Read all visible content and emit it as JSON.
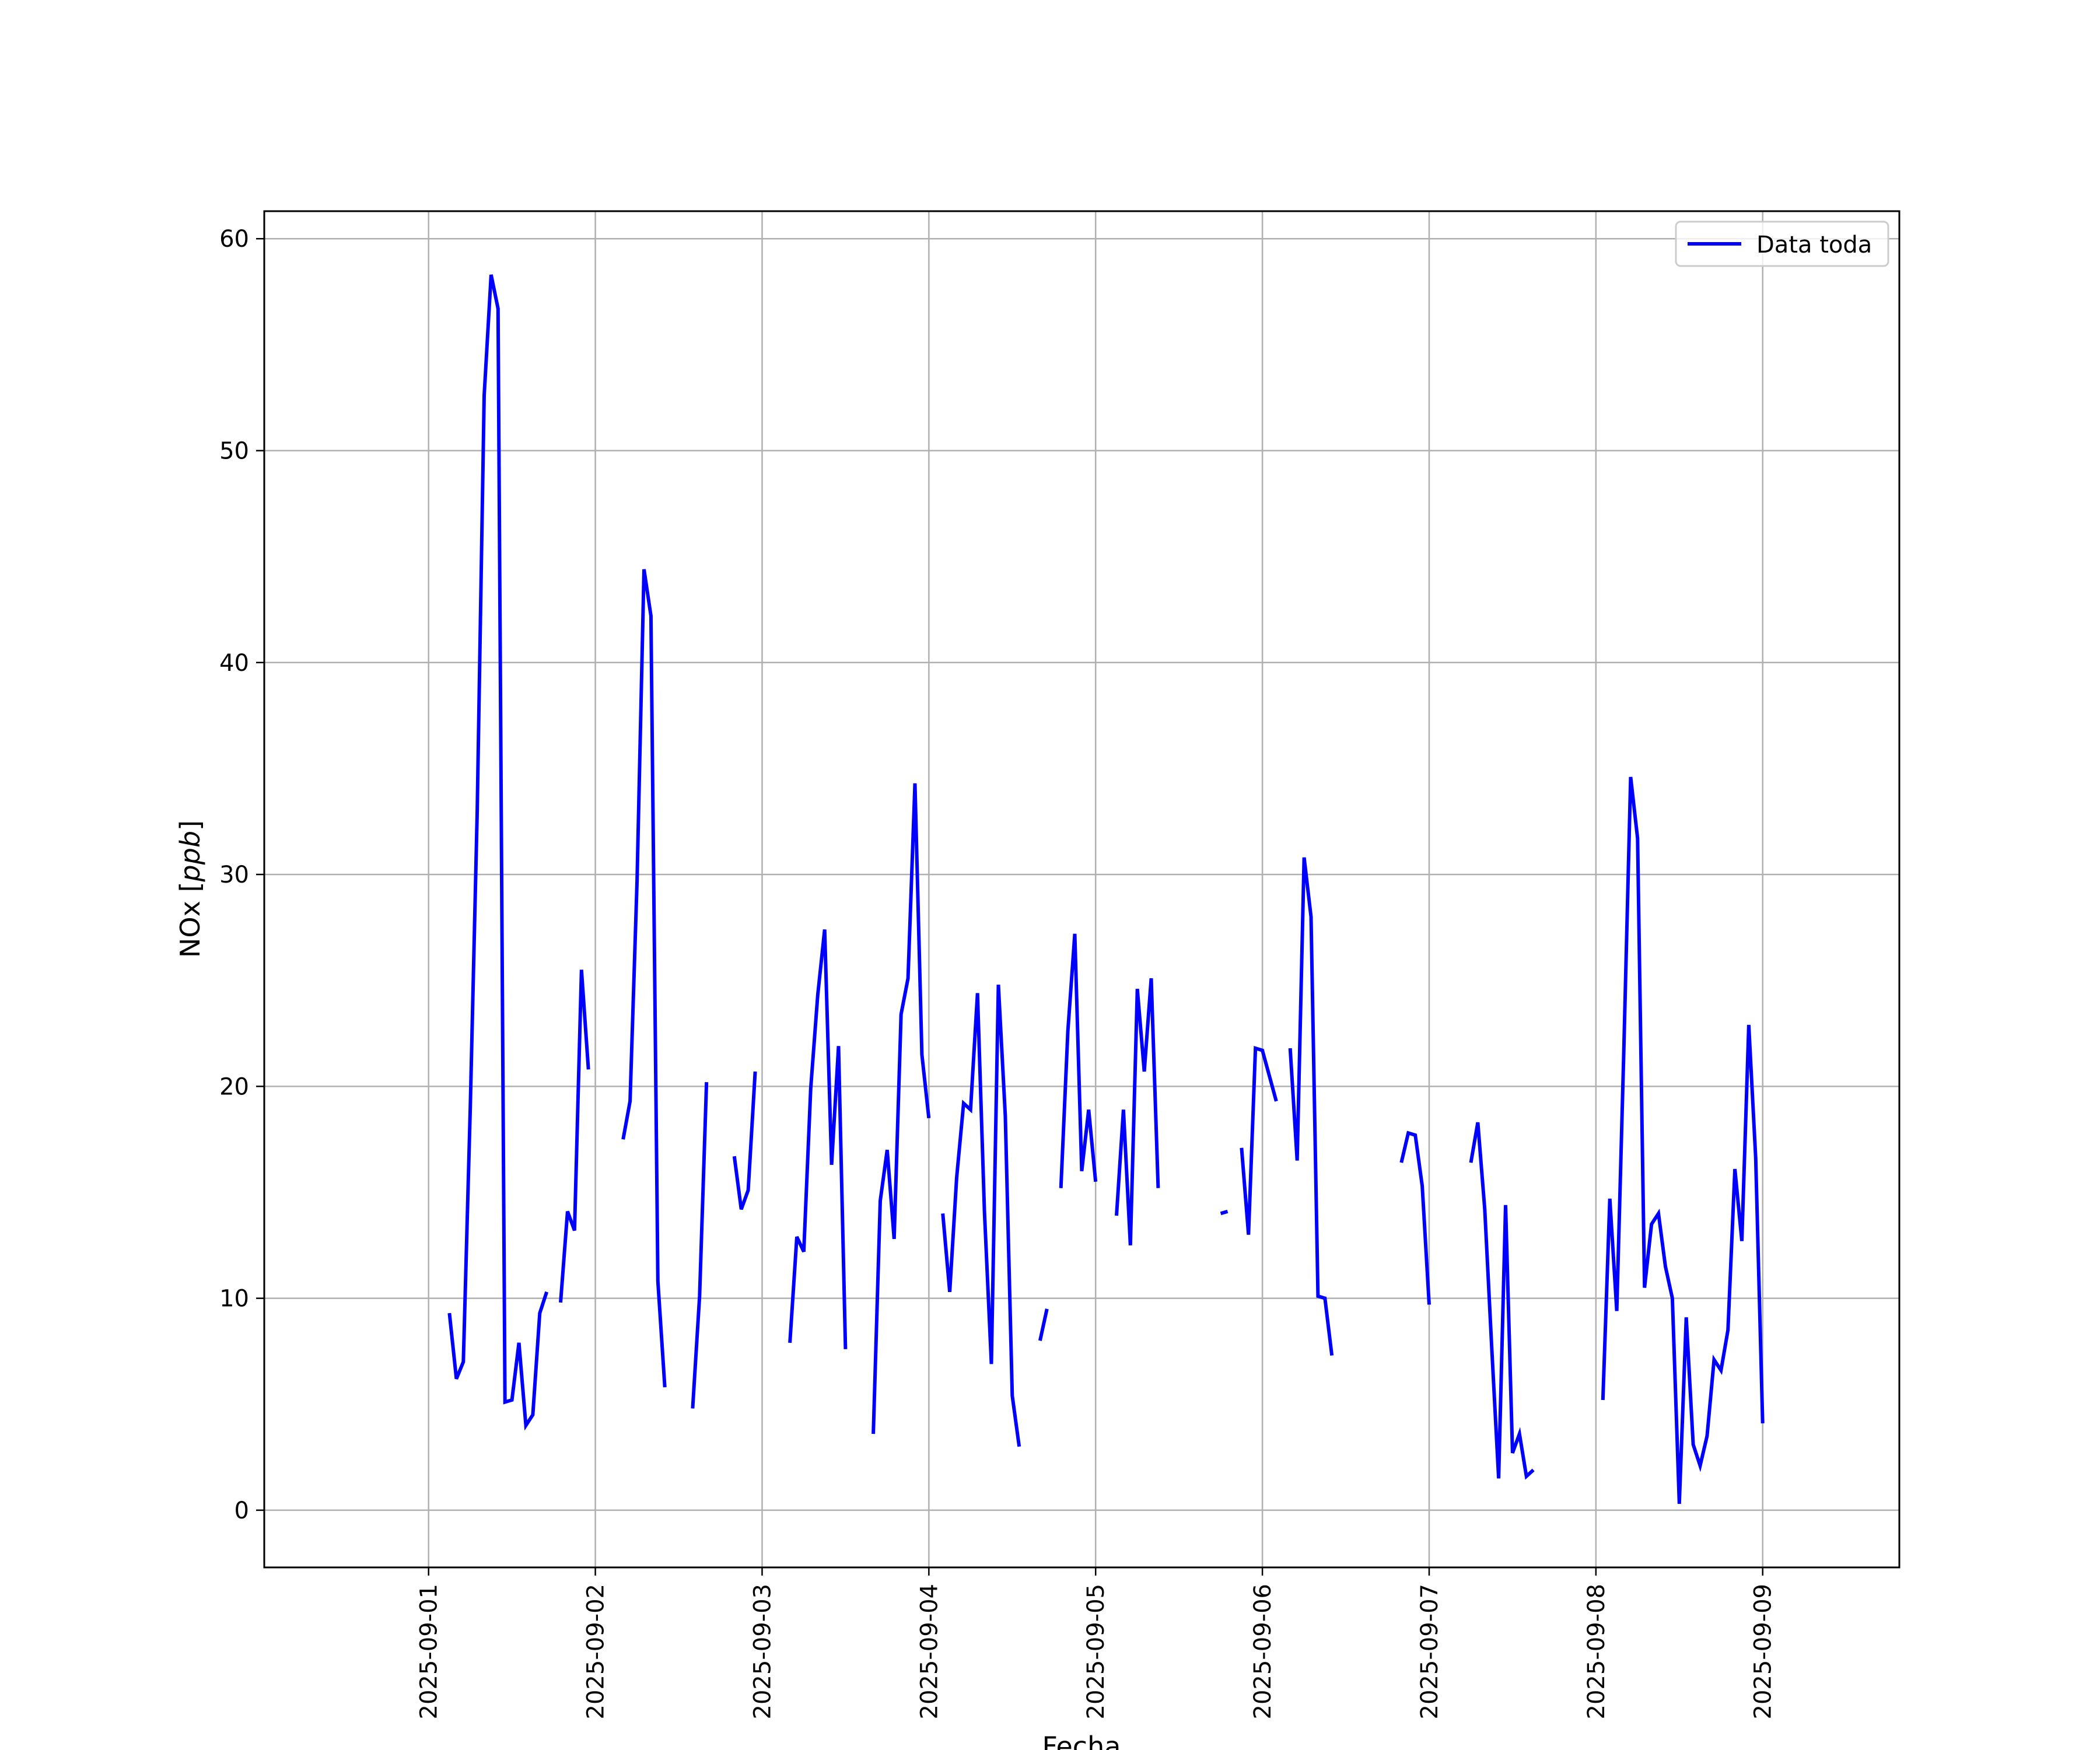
{
  "chart_data": {
    "type": "line",
    "title": "",
    "xlabel": "Fecha",
    "ylabel": "NOx [ppb]",
    "xlim": [
      "2025-08-31T00:21:00",
      "2025-09-09T19:40:00"
    ],
    "ylim": [
      -2.7,
      61.3
    ],
    "x_ticks": [
      "2025-09-01",
      "2025-09-02",
      "2025-09-03",
      "2025-09-04",
      "2025-09-05",
      "2025-09-06",
      "2025-09-07",
      "2025-09-08",
      "2025-09-09"
    ],
    "y_ticks": [
      0,
      10,
      20,
      30,
      40,
      50,
      60
    ],
    "grid": true,
    "legend": {
      "location": "upper right"
    },
    "colors": {
      "series": "#0000ff",
      "grid": "#b0b0b0",
      "axes": "#000000"
    },
    "series": [
      {
        "name": "Data toda",
        "segments": [
          [
            [
              "2025-09-01T03:00",
              9.3
            ],
            [
              "2025-09-01T04:00",
              6.2
            ],
            [
              "2025-09-01T05:00",
              7.0
            ],
            [
              "2025-09-01T06:00",
              19.0
            ],
            [
              "2025-09-01T07:00",
              33.0
            ],
            [
              "2025-09-01T08:00",
              52.6
            ],
            [
              "2025-09-01T09:00",
              58.3
            ],
            [
              "2025-09-01T10:00",
              56.7
            ],
            [
              "2025-09-01T11:00",
              5.1
            ],
            [
              "2025-09-01T12:00",
              5.2
            ],
            [
              "2025-09-01T13:00",
              7.9
            ],
            [
              "2025-09-01T14:00",
              4.0
            ],
            [
              "2025-09-01T15:00",
              4.5
            ],
            [
              "2025-09-01T16:00",
              9.3
            ],
            [
              "2025-09-01T17:00",
              10.3
            ]
          ],
          [
            [
              "2025-09-01T19:00",
              9.8
            ],
            [
              "2025-09-01T20:00",
              14.1
            ],
            [
              "2025-09-01T21:00",
              13.2
            ],
            [
              "2025-09-01T22:00",
              25.5
            ],
            [
              "2025-09-01T23:00",
              20.8
            ]
          ],
          [
            [
              "2025-09-02T04:00",
              17.5
            ],
            [
              "2025-09-02T05:00",
              19.3
            ],
            [
              "2025-09-02T06:00",
              29.7
            ],
            [
              "2025-09-02T07:00",
              44.4
            ],
            [
              "2025-09-02T08:00",
              42.2
            ],
            [
              "2025-09-02T09:00",
              10.8
            ],
            [
              "2025-09-02T10:00",
              5.8
            ]
          ],
          [
            [
              "2025-09-02T14:00",
              4.8
            ],
            [
              "2025-09-02T15:00",
              10.1
            ],
            [
              "2025-09-02T16:00",
              20.2
            ]
          ],
          [
            [
              "2025-09-02T20:00",
              16.7
            ],
            [
              "2025-09-02T21:00",
              14.2
            ],
            [
              "2025-09-02T22:00",
              15.1
            ],
            [
              "2025-09-02T23:00",
              20.7
            ]
          ],
          [
            [
              "2025-09-03T04:00",
              7.9
            ],
            [
              "2025-09-03T05:00",
              12.9
            ],
            [
              "2025-09-03T06:00",
              12.2
            ],
            [
              "2025-09-03T07:00",
              19.9
            ],
            [
              "2025-09-03T08:00",
              24.3
            ],
            [
              "2025-09-03T09:00",
              27.4
            ],
            [
              "2025-09-03T10:00",
              16.3
            ],
            [
              "2025-09-03T11:00",
              21.9
            ],
            [
              "2025-09-03T12:00",
              7.6
            ]
          ],
          [
            [
              "2025-09-03T16:00",
              3.6
            ],
            [
              "2025-09-03T17:00",
              14.6
            ],
            [
              "2025-09-03T18:00",
              17.0
            ],
            [
              "2025-09-03T19:00",
              12.8
            ],
            [
              "2025-09-03T20:00",
              23.4
            ],
            [
              "2025-09-03T21:00",
              25.1
            ],
            [
              "2025-09-03T22:00",
              34.3
            ],
            [
              "2025-09-03T23:00",
              21.5
            ],
            [
              "2025-09-04T00:00",
              18.5
            ]
          ],
          [
            [
              "2025-09-04T02:00",
              14.0
            ],
            [
              "2025-09-04T03:00",
              10.3
            ],
            [
              "2025-09-04T04:00",
              15.7
            ],
            [
              "2025-09-04T05:00",
              19.2
            ],
            [
              "2025-09-04T06:00",
              18.9
            ],
            [
              "2025-09-04T07:00",
              24.4
            ],
            [
              "2025-09-04T08:00",
              14.1
            ],
            [
              "2025-09-04T09:00",
              6.9
            ],
            [
              "2025-09-04T10:00",
              24.8
            ],
            [
              "2025-09-04T11:00",
              18.6
            ],
            [
              "2025-09-04T12:00",
              5.4
            ],
            [
              "2025-09-04T13:00",
              3.0
            ]
          ],
          [
            [
              "2025-09-04T16:00",
              8.0
            ],
            [
              "2025-09-04T17:00",
              9.5
            ]
          ],
          [
            [
              "2025-09-04T19:00",
              15.2
            ],
            [
              "2025-09-04T20:00",
              22.6
            ],
            [
              "2025-09-04T21:00",
              27.2
            ],
            [
              "2025-09-04T22:00",
              16.0
            ],
            [
              "2025-09-04T23:00",
              18.9
            ],
            [
              "2025-09-05T00:00",
              15.5
            ]
          ],
          [
            [
              "2025-09-05T03:00",
              13.9
            ],
            [
              "2025-09-05T04:00",
              18.9
            ],
            [
              "2025-09-05T05:00",
              12.5
            ],
            [
              "2025-09-05T06:00",
              24.6
            ],
            [
              "2025-09-05T07:00",
              20.7
            ],
            [
              "2025-09-05T08:00",
              25.1
            ],
            [
              "2025-09-05T09:00",
              15.2
            ]
          ],
          [
            [
              "2025-09-05T18:00",
              14.0
            ],
            [
              "2025-09-05T19:00",
              14.1
            ]
          ],
          [
            [
              "2025-09-05T21:00",
              17.1
            ],
            [
              "2025-09-05T22:00",
              13.0
            ],
            [
              "2025-09-05T23:00",
              21.8
            ],
            [
              "2025-09-06T00:00",
              21.7
            ],
            [
              "2025-09-06T01:00",
              20.5
            ],
            [
              "2025-09-06T02:00",
              19.3
            ]
          ],
          [
            [
              "2025-09-06T04:00",
              21.8
            ],
            [
              "2025-09-06T05:00",
              16.5
            ],
            [
              "2025-09-06T06:00",
              30.8
            ],
            [
              "2025-09-06T07:00",
              28.0
            ],
            [
              "2025-09-06T08:00",
              10.1
            ],
            [
              "2025-09-06T09:00",
              10.0
            ],
            [
              "2025-09-06T10:00",
              7.3
            ]
          ],
          [
            [
              "2025-09-06T20:00",
              16.4
            ],
            [
              "2025-09-06T21:00",
              17.8
            ],
            [
              "2025-09-06T22:00",
              17.7
            ],
            [
              "2025-09-06T23:00",
              15.3
            ],
            [
              "2025-09-07T00:00",
              9.7
            ]
          ],
          [
            [
              "2025-09-07T06:00",
              16.4
            ],
            [
              "2025-09-07T07:00",
              18.3
            ],
            [
              "2025-09-07T08:00",
              14.2
            ],
            [
              "2025-09-07T09:00",
              7.7
            ],
            [
              "2025-09-07T10:00",
              1.5
            ],
            [
              "2025-09-07T11:00",
              14.4
            ],
            [
              "2025-09-07T12:00",
              2.7
            ],
            [
              "2025-09-07T13:00",
              3.6
            ],
            [
              "2025-09-07T14:00",
              1.6
            ],
            [
              "2025-09-07T15:00",
              1.9
            ]
          ],
          [
            [
              "2025-09-08T01:00",
              5.2
            ],
            [
              "2025-09-08T02:00",
              14.7
            ],
            [
              "2025-09-08T03:00",
              9.4
            ],
            [
              "2025-09-08T04:00",
              21.5
            ],
            [
              "2025-09-08T05:00",
              34.6
            ],
            [
              "2025-09-08T06:00",
              31.7
            ],
            [
              "2025-09-08T07:00",
              10.5
            ],
            [
              "2025-09-08T08:00",
              13.5
            ],
            [
              "2025-09-08T09:00",
              14.0
            ],
            [
              "2025-09-08T10:00",
              11.5
            ],
            [
              "2025-09-08T11:00",
              10.0
            ],
            [
              "2025-09-08T12:00",
              0.3
            ],
            [
              "2025-09-08T13:00",
              9.1
            ],
            [
              "2025-09-08T14:00",
              3.1
            ],
            [
              "2025-09-08T15:00",
              2.1
            ],
            [
              "2025-09-08T16:00",
              3.5
            ],
            [
              "2025-09-08T17:00",
              7.1
            ],
            [
              "2025-09-08T18:00",
              6.6
            ],
            [
              "2025-09-08T19:00",
              8.5
            ],
            [
              "2025-09-08T20:00",
              16.1
            ],
            [
              "2025-09-08T21:00",
              12.7
            ],
            [
              "2025-09-08T22:00",
              22.9
            ],
            [
              "2025-09-08T23:00",
              16.6
            ],
            [
              "2025-09-09T00:00",
              4.1
            ]
          ]
        ]
      }
    ]
  }
}
